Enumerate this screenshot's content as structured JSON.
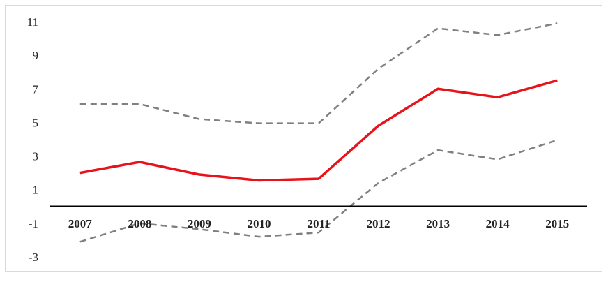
{
  "chart_data": {
    "type": "line",
    "title": "",
    "xlabel": "",
    "ylabel": "",
    "categories": [
      "2007",
      "2008",
      "2009",
      "2010",
      "2011",
      "2012",
      "2013",
      "2014",
      "2015"
    ],
    "ylim": [
      -3,
      11
    ],
    "yticks": [
      "11",
      "9",
      "7",
      "5",
      "3",
      "1",
      "-1",
      "-3"
    ],
    "ytick_values": [
      11,
      9,
      7,
      5,
      3,
      1,
      -1,
      -3
    ],
    "zero_line": 0,
    "grid": false,
    "legend": "none",
    "series": [
      {
        "role": "estimate",
        "color": "#e8131a",
        "style": "solid",
        "values": [
          2.0,
          2.65,
          1.9,
          1.55,
          1.65,
          4.8,
          7.0,
          6.5,
          7.5
        ]
      },
      {
        "role": "upper-bound",
        "color": "#808080",
        "style": "dashed",
        "values": [
          6.1,
          6.1,
          5.2,
          4.95,
          4.95,
          8.2,
          10.6,
          10.2,
          10.9
        ]
      },
      {
        "role": "lower-bound",
        "color": "#808080",
        "style": "dashed",
        "values": [
          -2.1,
          -1.0,
          -1.35,
          -1.8,
          -1.55,
          1.4,
          3.35,
          2.8,
          3.95
        ]
      }
    ]
  }
}
